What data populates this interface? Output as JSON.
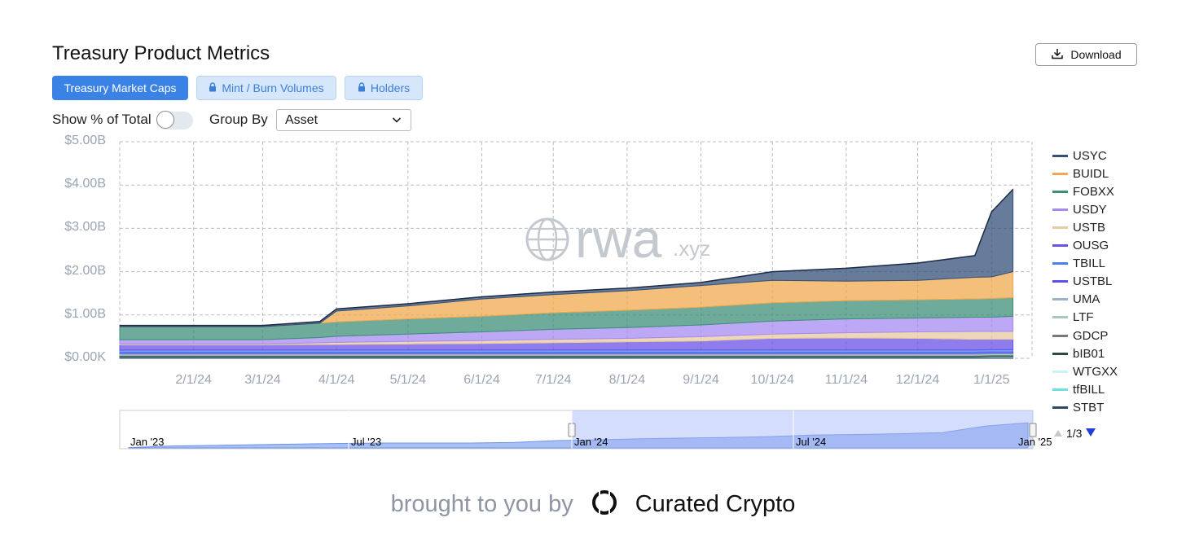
{
  "header": {
    "title": "Treasury Product Metrics",
    "download_label": "Download"
  },
  "tabs": [
    {
      "label": "Treasury Market Caps",
      "active": true,
      "locked": false
    },
    {
      "label": "Mint / Burn Volumes",
      "active": false,
      "locked": true
    },
    {
      "label": "Holders",
      "active": false,
      "locked": true
    }
  ],
  "controls": {
    "show_pct_label": "Show % of Total",
    "show_pct_on": false,
    "group_by_label": "Group By",
    "group_by_value": "Asset"
  },
  "watermark": {
    "main": "rwa",
    "suffix": ".xyz"
  },
  "legend": {
    "page": "1/3"
  },
  "navigator": {
    "labels": [
      "Jan '23",
      "Jul '23",
      "Jan '24",
      "Jul '24",
      "Jan '25"
    ]
  },
  "footer": {
    "prefix": "brought to you by",
    "brand": "Curated Crypto"
  },
  "chart_data": {
    "type": "area",
    "stacked": true,
    "grid": true,
    "legend_position": "right",
    "y_ticks": [
      "$0.00K",
      "$1.00B",
      "$2.00B",
      "$3.00B",
      "$4.00B",
      "$5.00B"
    ],
    "ylim": [
      0,
      5
    ],
    "y_unit": "$B",
    "x": [
      "1/1/24",
      "2/1/24",
      "3/1/24",
      "3/25/24",
      "4/1/24",
      "5/1/24",
      "6/1/24",
      "7/1/24",
      "8/1/24",
      "9/1/24",
      "10/1/24",
      "11/1/24",
      "12/1/24",
      "12/25/24",
      "1/1/25",
      "1/10/25"
    ],
    "x_tick_labels": [
      "2/1/24",
      "3/1/24",
      "4/1/24",
      "5/1/24",
      "6/1/24",
      "7/1/24",
      "8/1/24",
      "9/1/24",
      "10/1/24",
      "11/1/24",
      "12/1/24",
      "1/1/25"
    ],
    "series": [
      {
        "name": "USYC",
        "color": "#34507a",
        "values": [
          0.03,
          0.03,
          0.03,
          0.04,
          0.05,
          0.05,
          0.05,
          0.06,
          0.06,
          0.07,
          0.2,
          0.3,
          0.4,
          0.5,
          1.5,
          1.9
        ]
      },
      {
        "name": "BUIDL",
        "color": "#f0a94e",
        "values": [
          0.0,
          0.0,
          0.0,
          0.0,
          0.25,
          0.3,
          0.4,
          0.42,
          0.45,
          0.5,
          0.52,
          0.45,
          0.45,
          0.5,
          0.5,
          0.6
        ]
      },
      {
        "name": "FOBXX",
        "color": "#3d8f78",
        "values": [
          0.3,
          0.3,
          0.3,
          0.33,
          0.33,
          0.35,
          0.36,
          0.38,
          0.4,
          0.41,
          0.42,
          0.42,
          0.42,
          0.42,
          0.43,
          0.43
        ]
      },
      {
        "name": "USDY",
        "color": "#a58bf0",
        "values": [
          0.1,
          0.1,
          0.1,
          0.12,
          0.14,
          0.17,
          0.2,
          0.23,
          0.25,
          0.27,
          0.3,
          0.32,
          0.32,
          0.33,
          0.33,
          0.35
        ]
      },
      {
        "name": "USTB",
        "color": "#e8c9a0",
        "values": [
          0.02,
          0.02,
          0.02,
          0.04,
          0.05,
          0.06,
          0.07,
          0.08,
          0.08,
          0.1,
          0.1,
          0.12,
          0.15,
          0.18,
          0.18,
          0.18
        ]
      },
      {
        "name": "OUSG",
        "color": "#6a52e8",
        "values": [
          0.12,
          0.12,
          0.12,
          0.13,
          0.13,
          0.14,
          0.15,
          0.17,
          0.19,
          0.21,
          0.27,
          0.28,
          0.27,
          0.25,
          0.24,
          0.24
        ]
      },
      {
        "name": "TBILL",
        "color": "#4a7ff0",
        "values": [
          0.05,
          0.05,
          0.05,
          0.05,
          0.05,
          0.05,
          0.05,
          0.05,
          0.05,
          0.05,
          0.05,
          0.05,
          0.05,
          0.05,
          0.05,
          0.05
        ]
      },
      {
        "name": "USTBL",
        "color": "#5b4ff0",
        "values": [
          0.03,
          0.03,
          0.03,
          0.03,
          0.03,
          0.03,
          0.03,
          0.03,
          0.03,
          0.03,
          0.03,
          0.03,
          0.03,
          0.03,
          0.03,
          0.03
        ]
      },
      {
        "name": "UMA",
        "color": "#9ab3c8",
        "values": [
          0.02,
          0.02,
          0.02,
          0.02,
          0.02,
          0.02,
          0.02,
          0.02,
          0.02,
          0.02,
          0.02,
          0.02,
          0.02,
          0.02,
          0.02,
          0.02
        ]
      },
      {
        "name": "LTF",
        "color": "#a9c9bd",
        "values": [
          0.02,
          0.02,
          0.02,
          0.02,
          0.02,
          0.02,
          0.02,
          0.02,
          0.02,
          0.02,
          0.02,
          0.02,
          0.02,
          0.02,
          0.02,
          0.02
        ]
      },
      {
        "name": "GDCP",
        "color": "#7a7a7a",
        "values": [
          0.01,
          0.01,
          0.01,
          0.01,
          0.01,
          0.01,
          0.01,
          0.01,
          0.01,
          0.01,
          0.01,
          0.01,
          0.01,
          0.01,
          0.01,
          0.01
        ]
      },
      {
        "name": "bIB01",
        "color": "#2f4a3c",
        "values": [
          0.03,
          0.03,
          0.03,
          0.03,
          0.03,
          0.03,
          0.03,
          0.03,
          0.03,
          0.03,
          0.03,
          0.03,
          0.03,
          0.03,
          0.03,
          0.03
        ]
      },
      {
        "name": "WTGXX",
        "color": "#c7f4f4",
        "values": [
          0.0,
          0.0,
          0.0,
          0.0,
          0.0,
          0.0,
          0.0,
          0.0,
          0.0,
          0.0,
          0.0,
          0.0,
          0.0,
          0.0,
          0.01,
          0.01
        ]
      },
      {
        "name": "tfBILL",
        "color": "#6fe1dc",
        "values": [
          0.01,
          0.01,
          0.01,
          0.01,
          0.01,
          0.01,
          0.01,
          0.01,
          0.01,
          0.01,
          0.01,
          0.01,
          0.01,
          0.01,
          0.01,
          0.01
        ]
      },
      {
        "name": "STBT",
        "color": "#2e4a68",
        "values": [
          0.02,
          0.02,
          0.02,
          0.02,
          0.02,
          0.02,
          0.02,
          0.02,
          0.02,
          0.02,
          0.02,
          0.02,
          0.02,
          0.02,
          0.02,
          0.02
        ]
      }
    ]
  }
}
